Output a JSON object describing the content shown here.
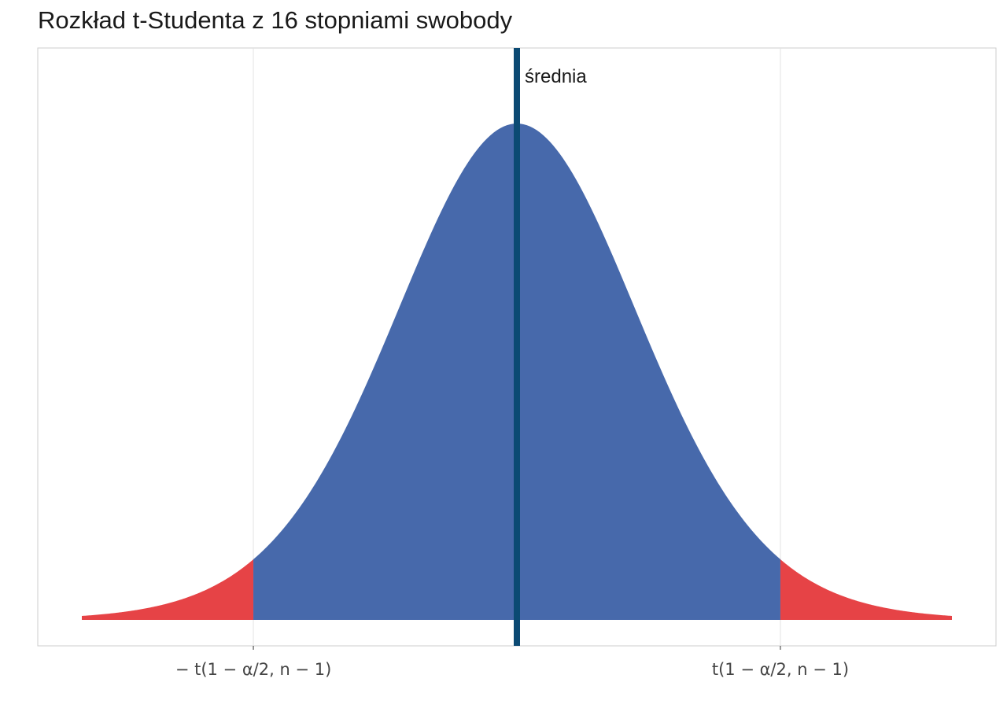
{
  "chart_data": {
    "type": "area",
    "title": "Rozkład t-Studenta z 16 stopniami swobody",
    "distribution": "t",
    "df": 16,
    "x_range": [
      -3.5,
      3.5
    ],
    "critical_value": 2.12,
    "mean": 0,
    "tick_values": [
      -2.12,
      2.12
    ],
    "tick_labels": [
      "− t(1 − α/2, n − 1)",
      "t(1 − α/2, n − 1)"
    ],
    "mean_label": "średnia",
    "xlabel": "",
    "ylabel": "",
    "grid": "vertical major only",
    "colors": {
      "center_fill": "#4769AB",
      "tail_fill": "#E64346",
      "mean_line": "#0B4A73",
      "grid": "#E3E3E3",
      "panel_border": "#CCCCCC"
    }
  }
}
